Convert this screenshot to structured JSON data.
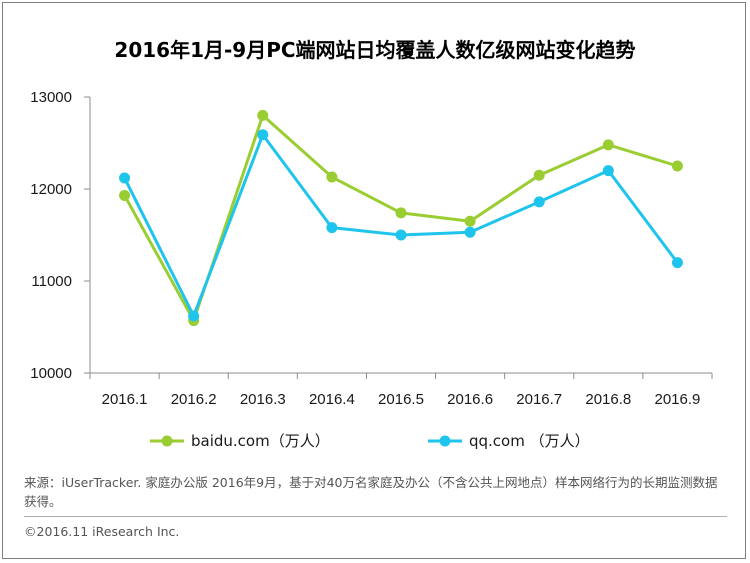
{
  "chart_data": {
    "type": "line",
    "title": "2016年1月-9月PC端网站日均覆盖人数亿级网站变化趋势",
    "categories": [
      "2016.1",
      "2016.2",
      "2016.3",
      "2016.4",
      "2016.5",
      "2016.6",
      "2016.7",
      "2016.8",
      "2016.9"
    ],
    "y_ticks": [
      "10000",
      "11000",
      "12000",
      "13000"
    ],
    "ylim": [
      10000,
      13000
    ],
    "grid": false,
    "legend_position": "bottom",
    "series": [
      {
        "name": "baidu.com（万人）",
        "color": "#9acd32",
        "values": [
          11930,
          10570,
          12800,
          12130,
          11740,
          11650,
          12150,
          12480,
          12250
        ]
      },
      {
        "name": "qq.com （万人）",
        "color": "#1fc4ec",
        "values": [
          12120,
          10620,
          12590,
          11580,
          11500,
          11530,
          11860,
          12200,
          11200
        ]
      }
    ]
  },
  "footer": {
    "source_note": "来源：iUserTracker. 家庭办公版 2016年9月，基于对40万名家庭及办公（不含公共上网地点）样本网络行为的长期监测数据获得。",
    "copyright": "©2016.11 iResearch Inc."
  }
}
